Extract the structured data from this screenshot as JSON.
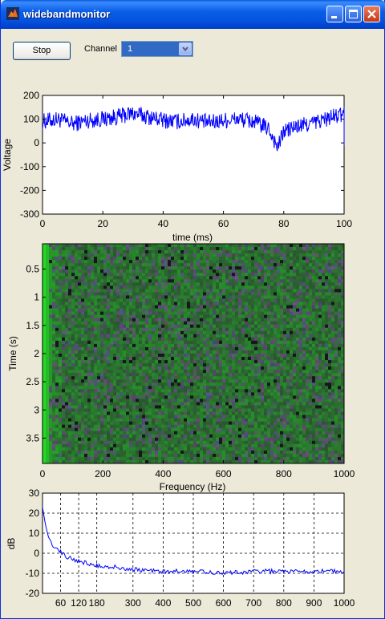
{
  "window": {
    "title": "widebandmonitor"
  },
  "controls": {
    "stop_label": "Stop",
    "channel_label": "Channel",
    "channel_value": "1"
  },
  "colors": {
    "titlebar": "#0a5ee6",
    "trace": "#0000ff",
    "face": "#ece9d8",
    "spectrogram_low": "#2e3a34",
    "spectrogram_high": "#19f019"
  },
  "chart_data": [
    {
      "type": "line",
      "title": "",
      "xlabel": "time (ms)",
      "ylabel": "Voltage",
      "xlim": [
        0,
        100
      ],
      "ylim": [
        -300,
        200
      ],
      "xticks": [
        "0",
        "20",
        "40",
        "60",
        "80",
        "100"
      ],
      "yticks": [
        "200",
        "100",
        "0",
        "-100",
        "-200",
        "-300"
      ],
      "grid": false,
      "series": [
        {
          "x": [
            0,
            5,
            10,
            15,
            20,
            25,
            30,
            35,
            40,
            45,
            50,
            55,
            60,
            65,
            70,
            75,
            78,
            80,
            85,
            90,
            95,
            100
          ],
          "values": [
            90,
            100,
            80,
            95,
            100,
            110,
            125,
            110,
            95,
            90,
            100,
            85,
            95,
            100,
            90,
            60,
            -20,
            50,
            70,
            85,
            105,
            120
          ]
        }
      ]
    },
    {
      "type": "heatmap",
      "title": "",
      "xlabel": "Frequency (Hz)",
      "ylabel": "Time (s)",
      "xlim": [
        0,
        1000
      ],
      "ylim": [
        3.95,
        0.05
      ],
      "xticks": [
        "0",
        "200",
        "400",
        "600",
        "800",
        "1000"
      ],
      "yticks": [
        "0.5",
        "1",
        "1.5",
        "2",
        "2.5",
        "3",
        "3.5"
      ],
      "grid": false
    },
    {
      "type": "line",
      "title": "",
      "xlabel": "",
      "ylabel": "dB",
      "xlim": [
        0,
        1000
      ],
      "ylim": [
        -20,
        30
      ],
      "xticks": [
        "60",
        "120",
        "180",
        "300",
        "400",
        "500",
        "600",
        "700",
        "800",
        "900",
        "1000"
      ],
      "yticks": [
        "30",
        "20",
        "10",
        "0",
        "-10",
        "-20"
      ],
      "grid": true,
      "series": [
        {
          "x": [
            0,
            10,
            20,
            40,
            60,
            80,
            120,
            180,
            250,
            300,
            400,
            500,
            600,
            700,
            800,
            900,
            1000
          ],
          "values": [
            23,
            14,
            8,
            3,
            1,
            -2,
            -4,
            -6,
            -7,
            -8,
            -9,
            -9,
            -10,
            -9,
            -9,
            -9,
            -9
          ]
        }
      ]
    }
  ]
}
